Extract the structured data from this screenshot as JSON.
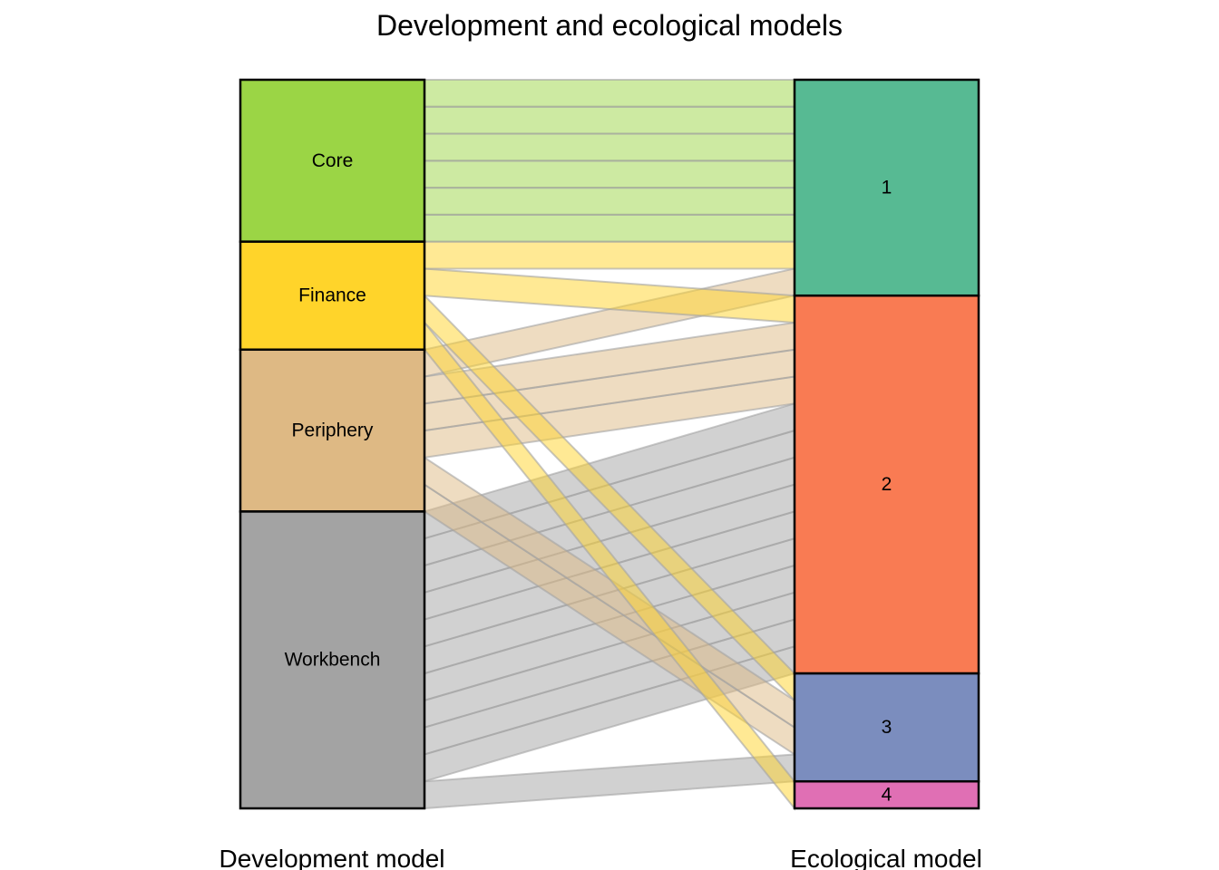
{
  "chart_data": {
    "type": "alluvial",
    "title": "Development and ecological models",
    "axes": [
      "Development model",
      "Ecological model"
    ],
    "left_nodes": [
      {
        "name": "Core",
        "color": "#9BD545"
      },
      {
        "name": "Finance",
        "color": "#FFD42A"
      },
      {
        "name": "Periphery",
        "color": "#DEB984"
      },
      {
        "name": "Workbench",
        "color": "#A3A3A3"
      }
    ],
    "right_nodes": [
      {
        "name": "1",
        "color": "#57BA93"
      },
      {
        "name": "2",
        "color": "#F97B53"
      },
      {
        "name": "3",
        "color": "#7B8DBE"
      },
      {
        "name": "4",
        "color": "#E06FB4"
      }
    ],
    "flows": [
      {
        "from": "Core",
        "to": "1",
        "value": 1
      },
      {
        "from": "Core",
        "to": "1",
        "value": 1
      },
      {
        "from": "Core",
        "to": "1",
        "value": 1
      },
      {
        "from": "Core",
        "to": "1",
        "value": 1
      },
      {
        "from": "Core",
        "to": "1",
        "value": 1
      },
      {
        "from": "Core",
        "to": "1",
        "value": 1
      },
      {
        "from": "Finance",
        "to": "1",
        "value": 1
      },
      {
        "from": "Finance",
        "to": "2",
        "value": 1
      },
      {
        "from": "Finance",
        "to": "3",
        "value": 1
      },
      {
        "from": "Finance",
        "to": "4",
        "value": 1
      },
      {
        "from": "Periphery",
        "to": "1",
        "value": 1
      },
      {
        "from": "Periphery",
        "to": "2",
        "value": 1
      },
      {
        "from": "Periphery",
        "to": "2",
        "value": 1
      },
      {
        "from": "Periphery",
        "to": "2",
        "value": 1
      },
      {
        "from": "Periphery",
        "to": "3",
        "value": 1
      },
      {
        "from": "Periphery",
        "to": "3",
        "value": 1
      },
      {
        "from": "Workbench",
        "to": "2",
        "value": 1
      },
      {
        "from": "Workbench",
        "to": "2",
        "value": 1
      },
      {
        "from": "Workbench",
        "to": "2",
        "value": 1
      },
      {
        "from": "Workbench",
        "to": "2",
        "value": 1
      },
      {
        "from": "Workbench",
        "to": "2",
        "value": 1
      },
      {
        "from": "Workbench",
        "to": "2",
        "value": 1
      },
      {
        "from": "Workbench",
        "to": "2",
        "value": 1
      },
      {
        "from": "Workbench",
        "to": "2",
        "value": 1
      },
      {
        "from": "Workbench",
        "to": "2",
        "value": 1
      },
      {
        "from": "Workbench",
        "to": "2",
        "value": 1
      },
      {
        "from": "Workbench",
        "to": "3",
        "value": 1
      }
    ]
  }
}
